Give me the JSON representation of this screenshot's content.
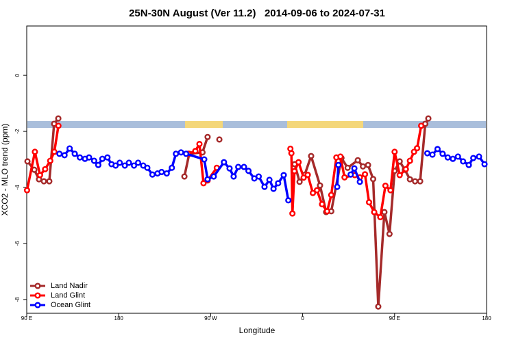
{
  "chart_data": {
    "type": "line",
    "title": "25N-30N August (Ver 11.2)   2014-09-06 to 2024-07-31",
    "x_label": "Longitude",
    "y_label": "XCO2 - MLO trend (ppm)",
    "xlim": [
      90,
      540
    ],
    "xticks": [
      {
        "value": 90,
        "label": "90 E"
      },
      {
        "value": 180,
        "label": "180"
      },
      {
        "value": 270,
        "label": "90 W"
      },
      {
        "value": 360,
        "label": "0"
      },
      {
        "value": 450,
        "label": "90 E"
      },
      {
        "value": 540,
        "label": "180"
      }
    ],
    "ylim": [
      -8.49,
      1.76
    ],
    "yticks": [
      0,
      -2,
      -4,
      -6,
      -8
    ],
    "legend": "bottomleft",
    "series": [
      {
        "name": "Land Nadir",
        "color": "#a52a2a",
        "x": [
          90.7,
          97.4,
          102,
          106.8,
          112.1,
          116.8,
          120.9,
          null,
          244.3,
          249,
          262,
          267,
          null,
          278.5,
          null,
          352.2,
          357,
          362,
          368.3,
          377,
          383,
          388,
          398,
          404,
          414,
          419,
          424,
          429,
          434,
          440,
          445,
          450,
          455,
          460,
          465,
          470,
          475,
          480,
          483
        ],
        "values": [
          -3.07,
          -3.37,
          -3.71,
          -3.78,
          -3.78,
          -1.73,
          -1.54,
          null,
          -3.61,
          -2.8,
          -2.75,
          -2.2,
          null,
          -2.29,
          null,
          -3.17,
          -3.8,
          -3.55,
          -2.88,
          -3.93,
          -4.88,
          -4.85,
          -2.95,
          -3.3,
          -3.03,
          -3.25,
          -3.2,
          -3.7,
          -8.25,
          -4.88,
          -5.66,
          -3.41,
          -3.07,
          -3.37,
          -3.71,
          -3.78,
          -3.78,
          -1.73,
          -1.54
        ]
      },
      {
        "name": "Land Glint",
        "color": "#ff0000",
        "x": [
          90.3,
          98,
          103,
          108,
          113,
          117,
          121,
          null,
          248,
          255,
          259,
          263,
          267,
          276,
          null,
          348,
          349,
          350,
          352,
          356,
          361,
          365,
          370,
          374,
          379,
          384,
          388,
          393,
          397,
          401,
          411,
          416,
          421,
          425,
          430,
          436,
          441,
          446,
          450,
          455,
          461,
          465,
          469,
          472,
          476
        ],
        "values": [
          -4.1,
          -2.73,
          -3.56,
          -3.35,
          -3.05,
          -2.73,
          -1.8,
          null,
          -2.8,
          -2.7,
          -2.45,
          -3.85,
          -3.75,
          -3.3,
          null,
          -2.62,
          -2.78,
          -4.93,
          -3.42,
          -3.1,
          -3.65,
          -3.55,
          -4.2,
          -4.1,
          -4.6,
          -4.85,
          -4.27,
          -2.93,
          -2.9,
          -3.64,
          -3.56,
          -3.64,
          -3.53,
          -4.53,
          -4.88,
          -5.06,
          -3.94,
          -4.1,
          -2.73,
          -3.56,
          -3.35,
          -3.05,
          -2.73,
          -2.6,
          -1.8
        ]
      },
      {
        "name": "Ocean Glint",
        "color": "#0000ff",
        "x": [
          122,
          127,
          132,
          137,
          142,
          147,
          151,
          156,
          160,
          164,
          169,
          173,
          177,
          181,
          186,
          190,
          195,
          199,
          204,
          208,
          213,
          218,
          222,
          227,
          232,
          236,
          241,
          246,
          263.7,
          267,
          273,
          283,
          288.5,
          292.5,
          297,
          302.6,
          307,
          312.7,
          317,
          322.7,
          327.5,
          331.5,
          336,
          341.5,
          346,
          null,
          393.8,
          395,
          null,
          407,
          410.6,
          416,
          null,
          482,
          487,
          492,
          497,
          502,
          507,
          512,
          517,
          522.6,
          527,
          532.6,
          538
        ],
        "values": [
          -2.8,
          -2.85,
          -2.61,
          -2.8,
          -2.93,
          -2.98,
          -2.93,
          -3.05,
          -3.2,
          -2.98,
          -2.93,
          -3.17,
          -3.22,
          -3.12,
          -3.22,
          -3.12,
          -3.22,
          -3.12,
          -3.22,
          -3.3,
          -3.54,
          -3.5,
          -3.45,
          -3.5,
          -3.3,
          -2.8,
          -2.75,
          -2.8,
          -3.0,
          -3.71,
          -3.61,
          -3.1,
          -3.32,
          -3.61,
          -3.27,
          -3.27,
          -3.41,
          -3.68,
          -3.61,
          -3.98,
          -3.73,
          -4.05,
          -3.85,
          -3.56,
          -4.46,
          null,
          -3.98,
          -3.2,
          null,
          -3.54,
          -3.32,
          -3.8,
          null,
          -2.78,
          -2.83,
          -2.63,
          -2.8,
          -2.93,
          -2.98,
          -2.9,
          -3.07,
          -3.2,
          -2.95,
          -2.9,
          -3.17
        ]
      }
    ]
  }
}
